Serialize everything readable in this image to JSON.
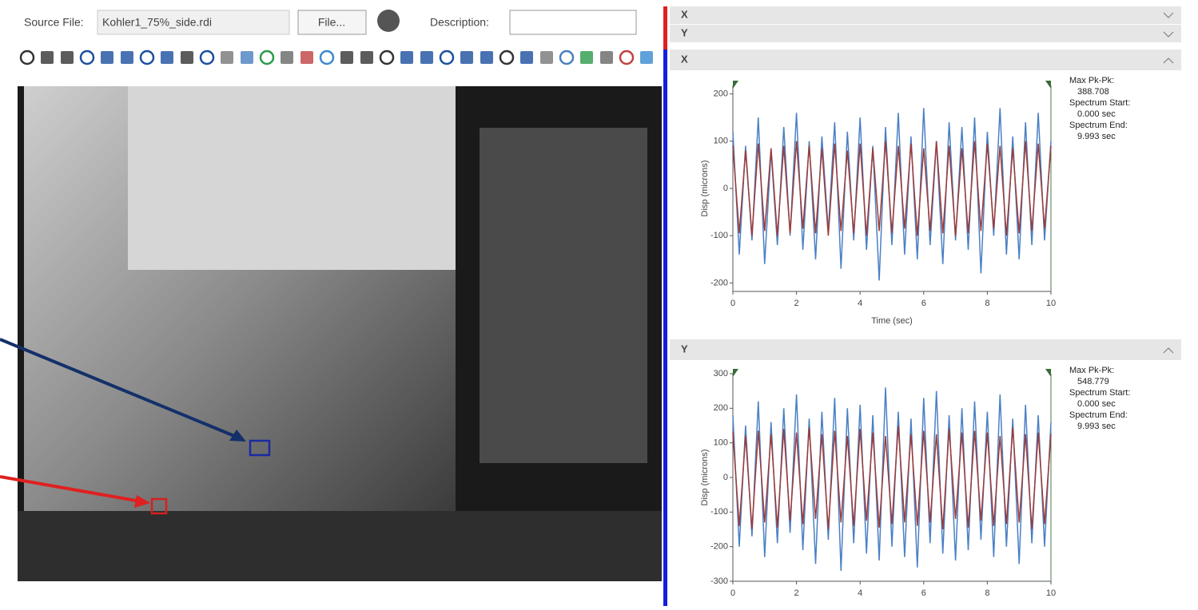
{
  "header": {
    "source_file_label": "Source File:",
    "source_file": "Kohler1_75%_side.rdi",
    "file_button": "File...",
    "description_label": "Description:"
  },
  "panel_headers": [
    "X",
    "Y",
    "X",
    "Y"
  ],
  "chart_data": [
    {
      "type": "line",
      "y_label": "Disp (microns)",
      "x_label": "Time (sec)",
      "x": [
        0,
        0.2,
        0.4,
        0.6,
        0.8,
        1,
        1.2,
        1.4,
        1.6,
        1.8,
        2,
        2.2,
        2.4,
        2.6,
        2.8,
        3,
        3.2,
        3.4,
        3.6,
        3.8,
        4,
        4.2,
        4.4,
        4.6,
        4.8,
        5,
        5.2,
        5.4,
        5.6,
        5.8,
        6,
        6.2,
        6.4,
        6.6,
        6.8,
        7,
        7.2,
        7.4,
        7.6,
        7.8,
        8,
        8.2,
        8.4,
        8.6,
        8.8,
        9,
        9.2,
        9.4,
        9.6,
        9.8,
        10
      ],
      "xlim": [
        0,
        10
      ],
      "xticks": [
        0,
        2,
        4,
        6,
        8,
        10
      ],
      "ylim": [
        -218,
        218
      ],
      "yticks": [
        -200,
        -100,
        0,
        100,
        200
      ],
      "series": [
        {
          "color": "#4a80c4",
          "values": [
            120,
            -140,
            90,
            -110,
            150,
            -160,
            80,
            -120,
            130,
            -100,
            160,
            -130,
            100,
            -150,
            110,
            -90,
            140,
            -170,
            120,
            -110,
            150,
            -130,
            90,
            -195,
            130,
            -120,
            160,
            -140,
            110,
            -150,
            170,
            -120,
            100,
            -160,
            140,
            -110,
            130,
            -130,
            150,
            -180,
            120,
            -100,
            170,
            -140,
            110,
            -150,
            140,
            -120,
            160,
            -110,
            100
          ]
        },
        {
          "color": "#9e3b38",
          "values": [
            90,
            -95,
            80,
            -100,
            95,
            -90,
            85,
            -100,
            90,
            -95,
            100,
            -85,
            90,
            -95,
            85,
            -100,
            95,
            -90,
            80,
            -95,
            95,
            -100,
            85,
            -90,
            100,
            -95,
            90,
            -85,
            95,
            -100,
            85,
            -90,
            100,
            -95,
            90,
            -100,
            85,
            -95,
            100,
            -90,
            95,
            -85,
            90,
            -100,
            85,
            -95,
            100,
            -90,
            95,
            -85,
            90
          ]
        }
      ],
      "annotations": [
        "Max Pk-Pk:",
        "388.708",
        "Spectrum Start:",
        "0.000 sec",
        "Spectrum End:",
        "9.993 sec"
      ]
    },
    {
      "type": "line",
      "y_label": "Disp (microns)",
      "x": [
        0,
        0.2,
        0.4,
        0.6,
        0.8,
        1,
        1.2,
        1.4,
        1.6,
        1.8,
        2,
        2.2,
        2.4,
        2.6,
        2.8,
        3,
        3.2,
        3.4,
        3.6,
        3.8,
        4,
        4.2,
        4.4,
        4.6,
        4.8,
        5,
        5.2,
        5.4,
        5.6,
        5.8,
        6,
        6.2,
        6.4,
        6.6,
        6.8,
        7,
        7.2,
        7.4,
        7.6,
        7.8,
        8,
        8.2,
        8.4,
        8.6,
        8.8,
        9,
        9.2,
        9.4,
        9.6,
        9.8,
        10
      ],
      "xlim": [
        0,
        10
      ],
      "xticks": [
        0,
        2,
        4,
        6,
        8,
        10
      ],
      "ylim": [
        -300,
        300
      ],
      "yticks": [
        -300,
        -200,
        -100,
        0,
        100,
        200,
        300
      ],
      "series": [
        {
          "color": "#4a80c4",
          "values": [
            180,
            -200,
            150,
            -170,
            220,
            -230,
            160,
            -190,
            200,
            -160,
            240,
            -210,
            170,
            -250,
            190,
            -180,
            230,
            -270,
            200,
            -190,
            210,
            -220,
            180,
            -240,
            260,
            -200,
            190,
            -230,
            170,
            -260,
            230,
            -190,
            250,
            -220,
            180,
            -240,
            200,
            -210,
            220,
            -180,
            190,
            -230,
            240,
            -200,
            170,
            -250,
            210,
            -190,
            180,
            -200,
            160
          ]
        },
        {
          "color": "#9e3b38",
          "values": [
            130,
            -140,
            120,
            -150,
            135,
            -130,
            125,
            -145,
            140,
            -125,
            130,
            -135,
            145,
            -120,
            125,
            -150,
            135,
            -130,
            120,
            -140,
            140,
            -125,
            130,
            -145,
            120,
            -135,
            150,
            -130,
            125,
            -140,
            135,
            -130,
            125,
            -150,
            140,
            -120,
            130,
            -145,
            135,
            -125,
            130,
            -140,
            120,
            -135,
            145,
            -130,
            125,
            -150,
            130,
            -135,
            125
          ]
        }
      ],
      "annotations": [
        "Max Pk-Pk:",
        "548.779",
        "Spectrum Start:",
        "0.000 sec",
        "Spectrum End:",
        "9.993 sec"
      ]
    }
  ]
}
